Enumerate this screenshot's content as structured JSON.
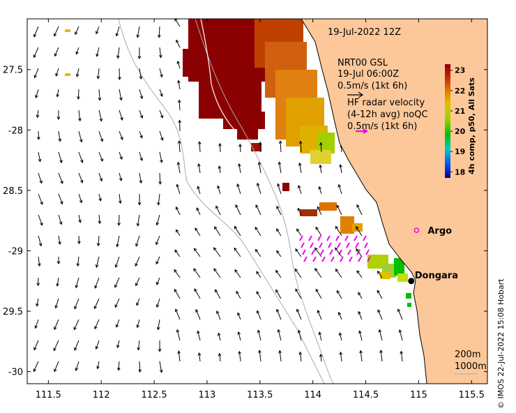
{
  "map": {
    "title": "19-Jul-2022 12Z",
    "lon_ticks": [
      "111.5",
      "112",
      "112.5",
      "113",
      "113.5",
      "114",
      "114.5",
      "115",
      "115.5"
    ],
    "lat_ticks": [
      "27.5",
      "-28",
      "28.5",
      "-29",
      "29.5",
      "-30"
    ],
    "lon_range": [
      111.3,
      115.65
    ],
    "lat_range": [
      -30.1,
      -27.08
    ],
    "model_label": {
      "line1": "NRT00 GSL",
      "line2": "19-Jul 06:00Z",
      "line3": "0.5m/s (1kt 6h)"
    },
    "radar_label": {
      "line1": "HF radar velocity",
      "line2": "(4-12h avg) noQC",
      "line3": "0.5m/s (1kt 6h)"
    },
    "colorbar": {
      "label": "4h comp, p50, All Sats",
      "ticks": [
        "23",
        "22",
        "21",
        "20",
        "19",
        "18"
      ],
      "range": [
        17.7,
        23.3
      ],
      "colors": [
        "#000080",
        "#0050ff",
        "#00c8c8",
        "#00c000",
        "#a0d000",
        "#e0c000",
        "#e07000",
        "#c02000",
        "#8b0000"
      ]
    },
    "places": [
      {
        "name": "Argo",
        "lon": 114.98,
        "lat": -28.83
      },
      {
        "name": "Dongara",
        "lon": 114.93,
        "lat": -29.25
      }
    ],
    "depth_labels": [
      "200m",
      "1000m"
    ],
    "credit": "© IMOS 22-Jul-2022 15:08 Hobart",
    "colors": {
      "land": "#fcc89a",
      "arrow": "#000000",
      "radar": "#ee00ee",
      "argo": "#ee00ee",
      "contour": "#aaaaaa"
    }
  }
}
